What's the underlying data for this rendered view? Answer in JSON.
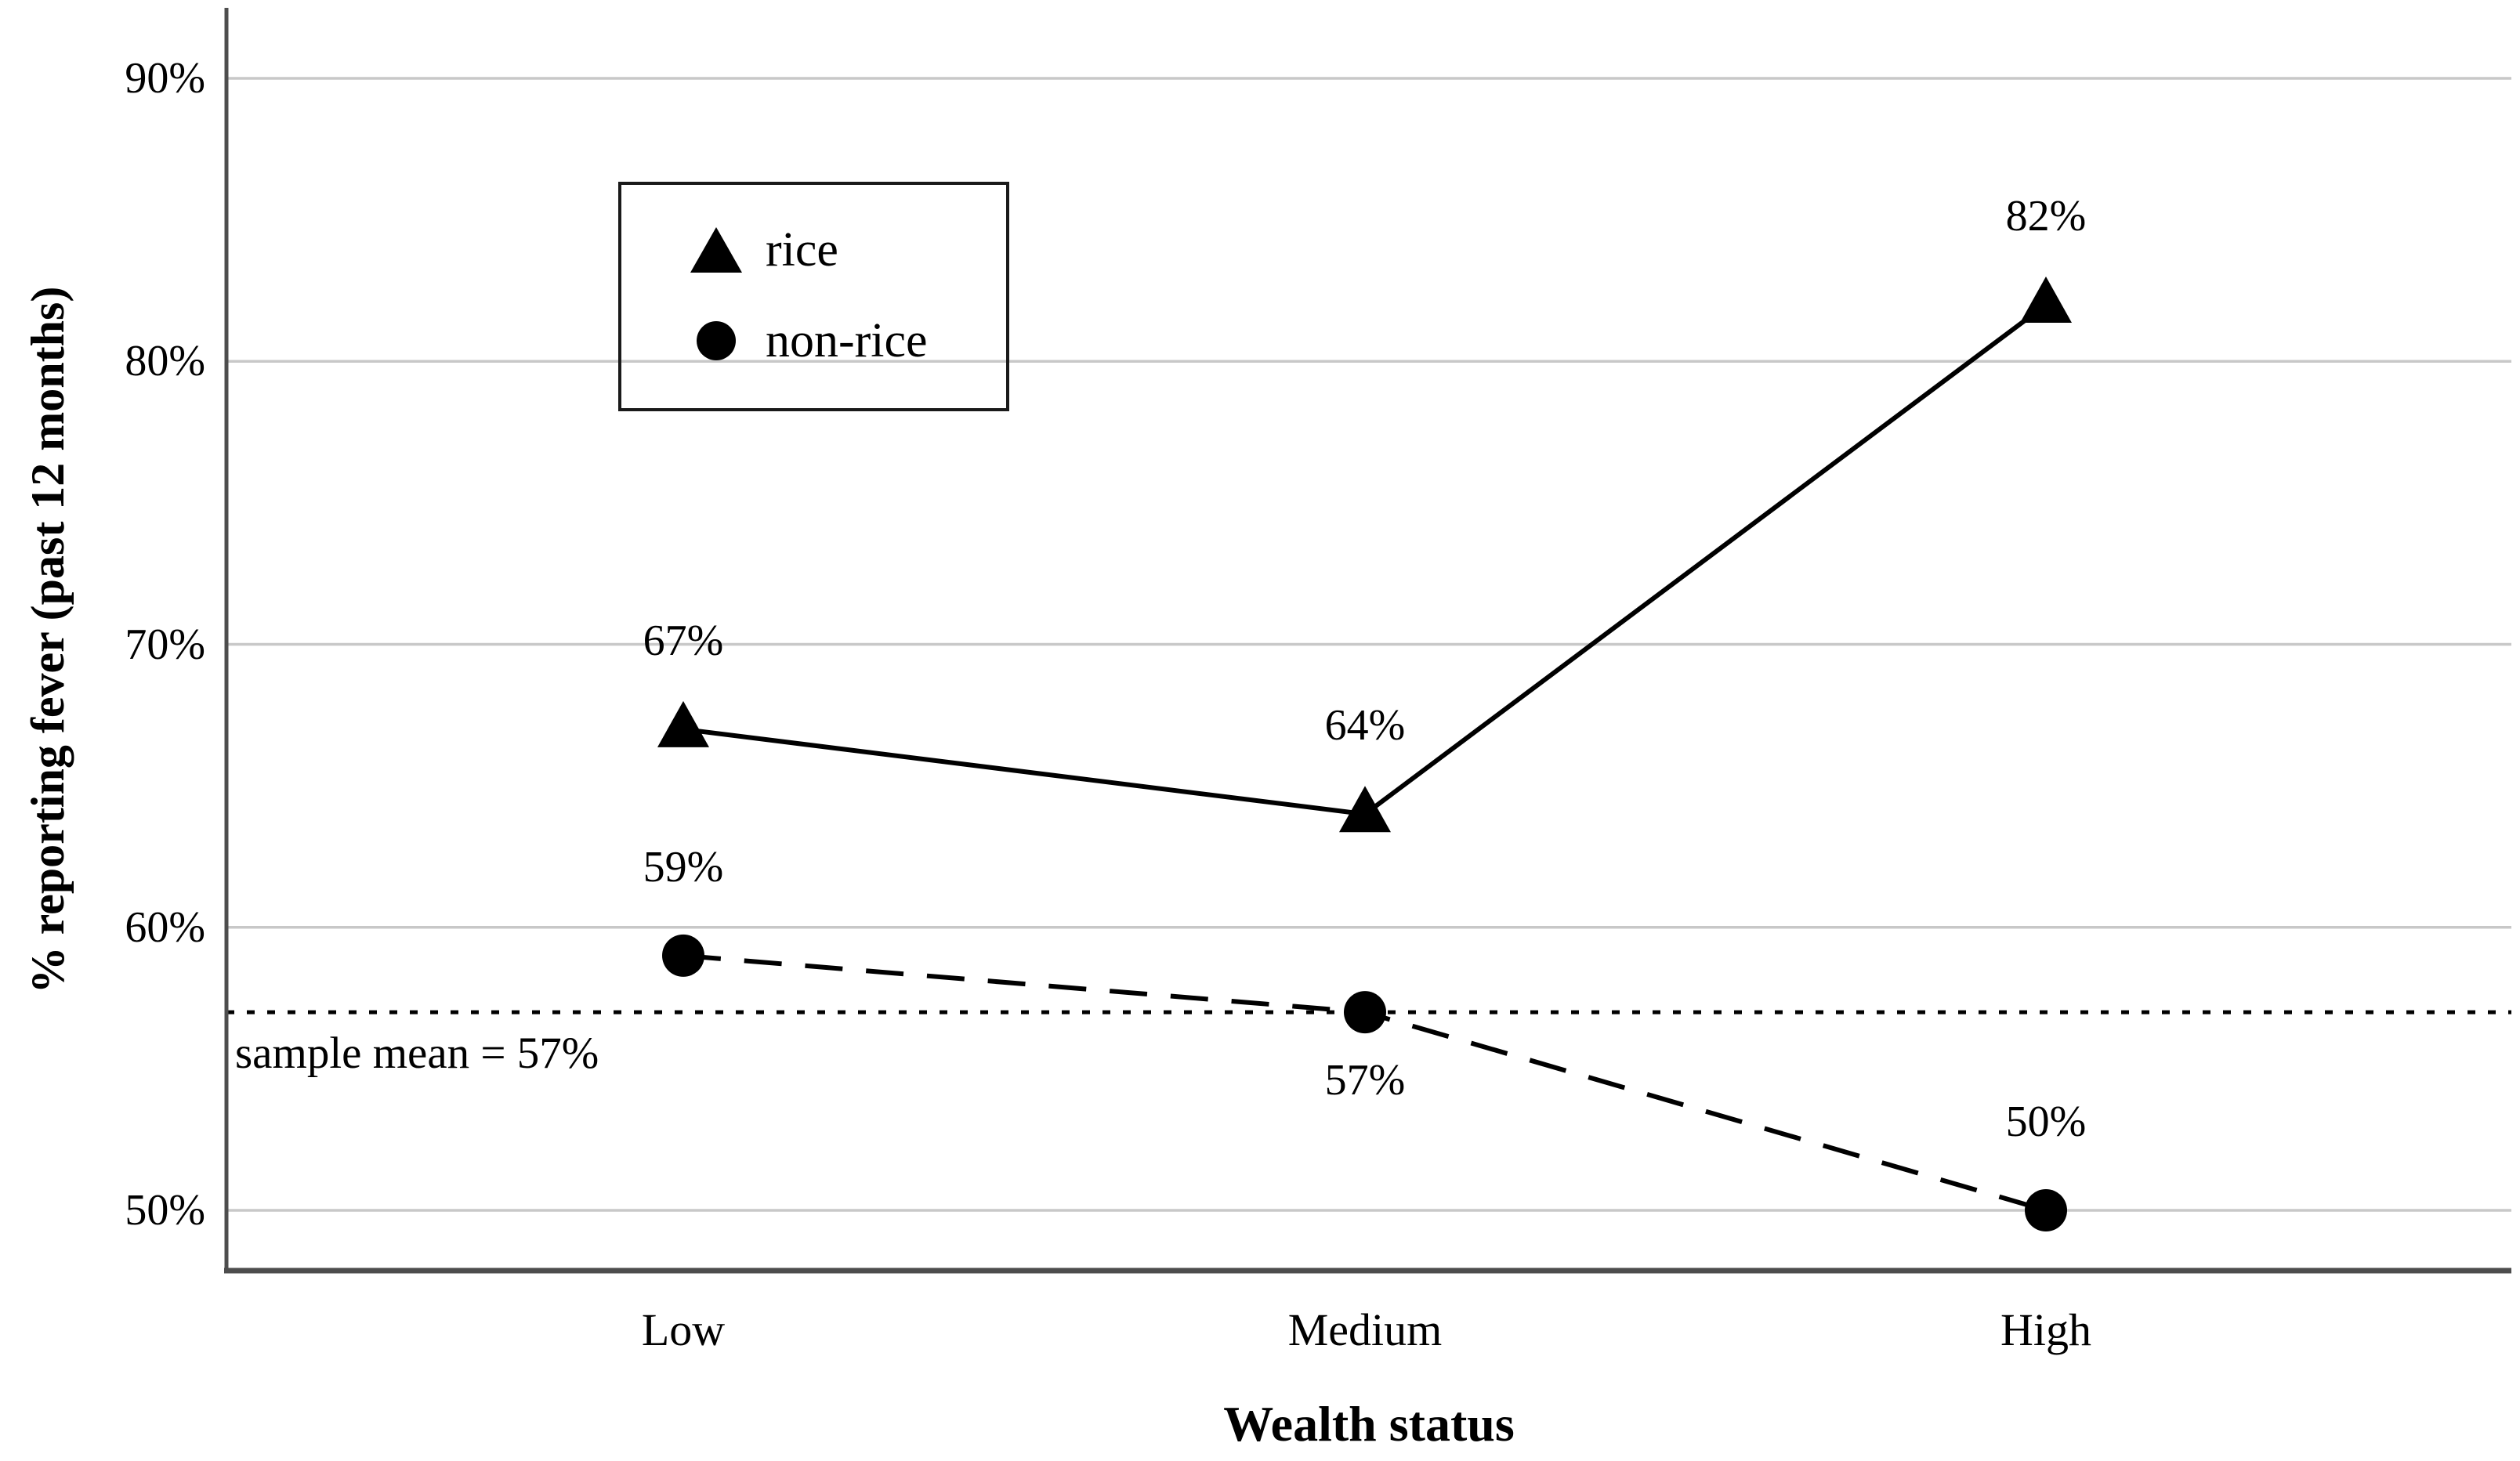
{
  "chart_data": {
    "type": "line",
    "title": "",
    "xlabel": "Wealth status",
    "ylabel": "% reporting fever (past 12 months)",
    "categories": [
      "Low",
      "Medium",
      "High"
    ],
    "y_ticks": [
      {
        "value": 50,
        "label": "50%"
      },
      {
        "value": 60,
        "label": "60%"
      },
      {
        "value": 70,
        "label": "70%"
      },
      {
        "value": 80,
        "label": "80%"
      },
      {
        "value": 90,
        "label": "90%"
      }
    ],
    "ylim": [
      47.9,
      92.5
    ],
    "grid": "horizontal-only",
    "legend_position": "inside-upper-left",
    "series": [
      {
        "name": "rice",
        "marker": "triangle",
        "line_style": "solid",
        "values": [
          67,
          64,
          82
        ],
        "point_labels": [
          "67%",
          "64%",
          "82%"
        ],
        "label_positions": [
          "above",
          "above",
          "above"
        ]
      },
      {
        "name": "non-rice",
        "marker": "circle",
        "line_style": "dashed",
        "values": [
          59,
          57,
          50
        ],
        "point_labels": [
          "59%",
          "57%",
          "50%"
        ],
        "label_positions": [
          "above",
          "below",
          "above"
        ]
      }
    ],
    "reference_line": {
      "value": 57,
      "style": "dotted",
      "label": "sample mean = 57%"
    }
  },
  "legend": {
    "items": [
      {
        "label": "rice",
        "marker": "triangle-marker"
      },
      {
        "label": "non-rice",
        "marker": "circle-marker"
      }
    ]
  },
  "colors": {
    "series": "#000000",
    "gridline": "#c8c8c8",
    "axis": "#4d4d4d",
    "text": "#000000",
    "background": "#ffffff"
  }
}
